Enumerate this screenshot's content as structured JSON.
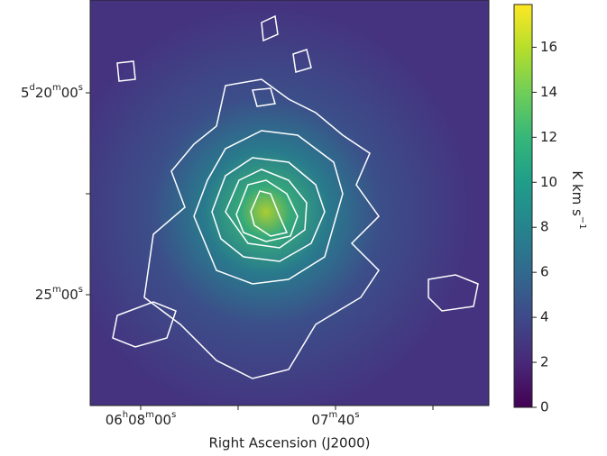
{
  "chart_data": {
    "type": "heatmap",
    "x_label": "Right Ascension (J2000)",
    "x_tick_labels": [
      "06h08m00s",
      "07m40s"
    ],
    "y_tick_labels": [
      "5d20m00s",
      "25m00s"
    ],
    "colorbar": {
      "label": "K km s-1",
      "lim": [
        0,
        17.9
      ],
      "ticks": [
        0,
        2,
        4,
        6,
        8,
        10,
        12,
        14,
        16
      ]
    }
  }
}
